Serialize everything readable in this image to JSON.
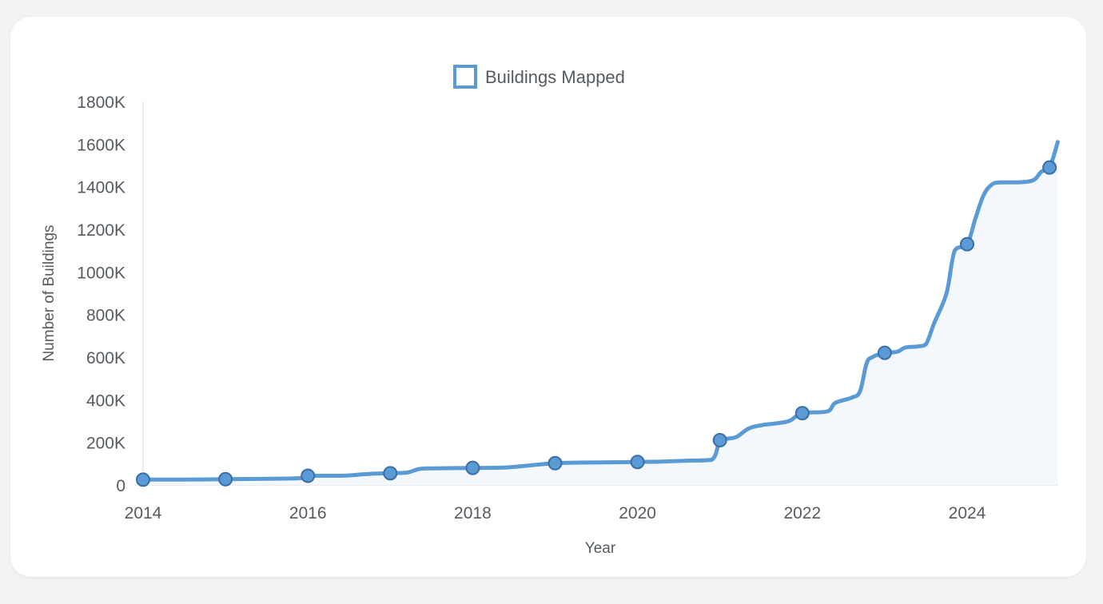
{
  "chart_data": {
    "type": "area",
    "title": "",
    "xlabel": "Year",
    "ylabel": "Number of Buildings",
    "xlim": [
      2014,
      2025.1
    ],
    "ylim": [
      0,
      1800000
    ],
    "x_ticks": [
      2014,
      2016,
      2018,
      2020,
      2022,
      2024
    ],
    "x_tick_labels": [
      "2014",
      "2016",
      "2018",
      "2020",
      "2022",
      "2024"
    ],
    "y_ticks": [
      0,
      200000,
      400000,
      600000,
      800000,
      1000000,
      1200000,
      1400000,
      1600000,
      1800000
    ],
    "y_tick_labels": [
      "0",
      "200K",
      "400K",
      "600K",
      "800K",
      "1000K",
      "1200K",
      "1400K",
      "1600K",
      "1800K"
    ],
    "grid": false,
    "legend_position": "top-center",
    "colors": {
      "line": "#5b9bd5",
      "fill": "#f4f8fc",
      "marker_fill": "#5b9bd5",
      "marker_stroke": "#3a6ea5",
      "axis": "#e3e6ea"
    },
    "series": [
      {
        "name": "Buildings Mapped",
        "x": [
          2014,
          2014.5,
          2015,
          2015.5,
          2015.9,
          2016,
          2016.4,
          2016.6,
          2016.8,
          2017,
          2017.2,
          2017.35,
          2017.5,
          2018,
          2018.4,
          2018.7,
          2019,
          2019.3,
          2019.6,
          2020,
          2020.3,
          2020.6,
          2020.9,
          2021,
          2021.1,
          2021.2,
          2021.35,
          2021.5,
          2021.7,
          2021.85,
          2022,
          2022.3,
          2022.4,
          2022.6,
          2022.7,
          2022.78,
          2022.85,
          2023,
          2023.15,
          2023.25,
          2023.4,
          2023.5,
          2023.6,
          2023.75,
          2023.85,
          2024,
          2024.1,
          2024.2,
          2024.3,
          2024.4,
          2024.6,
          2024.8,
          2024.9,
          2025,
          2025.1
        ],
        "values": [
          25000,
          25000,
          27000,
          29000,
          32000,
          43000,
          43000,
          48000,
          53000,
          55000,
          58000,
          75000,
          78000,
          80000,
          82000,
          92000,
          102000,
          105000,
          106000,
          108000,
          110000,
          114000,
          118000,
          210000,
          218000,
          225000,
          265000,
          280000,
          290000,
          302000,
          337000,
          345000,
          385000,
          410000,
          440000,
          570000,
          600000,
          620000,
          625000,
          645000,
          650000,
          660000,
          760000,
          900000,
          1100000,
          1130000,
          1250000,
          1360000,
          1410000,
          1420000,
          1420000,
          1430000,
          1470000,
          1490000,
          1610000
        ]
      }
    ],
    "markers": {
      "x": [
        2014,
        2015,
        2016,
        2017,
        2018,
        2019,
        2020,
        2021,
        2022,
        2023,
        2024,
        2025
      ],
      "values": [
        25000,
        27000,
        43000,
        55000,
        80000,
        102000,
        108000,
        210000,
        337000,
        620000,
        1130000,
        1490000
      ]
    }
  }
}
